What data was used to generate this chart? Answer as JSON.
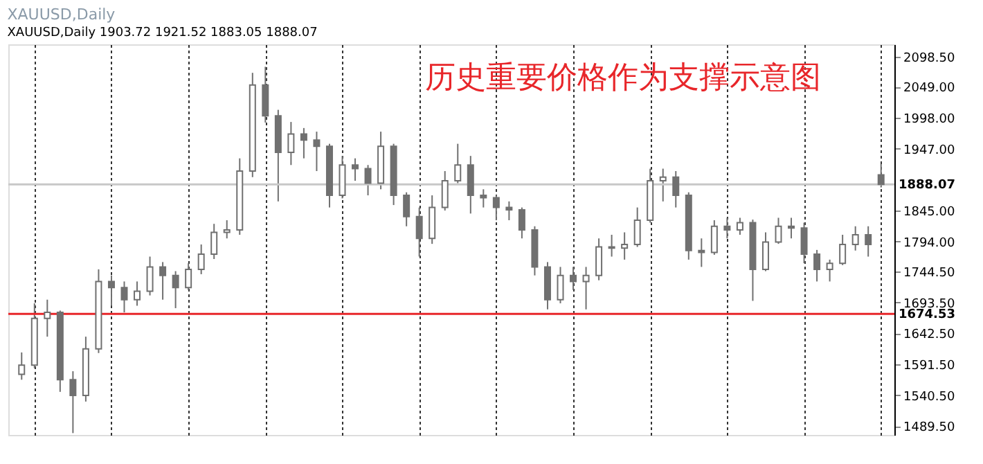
{
  "chart_data": {
    "type": "candlestick",
    "title": "XAUUSD,Daily",
    "subtitle": "XAUUSD,Daily  1903.72 1921.52 1883.05 1888.07",
    "annotations": [
      "历史重要价格作为支撑示意图"
    ],
    "color": "#707070",
    "categories": [
      null,
      null,
      null,
      null,
      null,
      null,
      null,
      null,
      null,
      null,
      null,
      null,
      null,
      null,
      null,
      null,
      null,
      null,
      null,
      null,
      null,
      null,
      null,
      null,
      null,
      null,
      null,
      null,
      null,
      null,
      null,
      null,
      null,
      null,
      null,
      null,
      null,
      null,
      null,
      null,
      null,
      null,
      null,
      null,
      null,
      null,
      null,
      null,
      null,
      null,
      null,
      null,
      null,
      null,
      null,
      null,
      null,
      null,
      null,
      null,
      null,
      null,
      null,
      null,
      null,
      null,
      null,
      null
    ],
    "ohlc": [
      [
        1575,
        1611,
        1566,
        1590
      ],
      [
        1590,
        1692,
        1585,
        1667
      ],
      [
        1667,
        1698,
        1637,
        1677
      ],
      [
        1677,
        1680,
        1546,
        1566
      ],
      [
        1566,
        1580,
        1478,
        1540
      ],
      [
        1540,
        1637,
        1530,
        1617
      ],
      [
        1617,
        1748,
        1610,
        1728
      ],
      [
        1728,
        1738,
        1688,
        1718
      ],
      [
        1718,
        1728,
        1677,
        1698
      ],
      [
        1698,
        1728,
        1688,
        1712
      ],
      [
        1712,
        1769,
        1705,
        1752
      ],
      [
        1752,
        1760,
        1698,
        1738
      ],
      [
        1738,
        1745,
        1684,
        1718
      ],
      [
        1718,
        1758,
        1714,
        1748
      ],
      [
        1748,
        1789,
        1740,
        1773
      ],
      [
        1773,
        1823,
        1765,
        1809
      ],
      [
        1809,
        1829,
        1799,
        1813
      ],
      [
        1813,
        1931,
        1805,
        1910
      ],
      [
        1910,
        2072,
        1900,
        2052
      ],
      [
        2052,
        2082,
        1990,
        2001
      ],
      [
        2001,
        2011,
        1860,
        1941
      ],
      [
        1941,
        1991,
        1920,
        1971
      ],
      [
        1971,
        1981,
        1931,
        1961
      ],
      [
        1961,
        1975,
        1910,
        1951
      ],
      [
        1951,
        1955,
        1850,
        1870
      ],
      [
        1870,
        1935,
        1865,
        1920
      ],
      [
        1920,
        1931,
        1894,
        1914
      ],
      [
        1914,
        1920,
        1870,
        1890
      ],
      [
        1890,
        1975,
        1880,
        1951
      ],
      [
        1951,
        1955,
        1854,
        1870
      ],
      [
        1870,
        1875,
        1819,
        1835
      ],
      [
        1835,
        1850,
        1769,
        1799
      ],
      [
        1799,
        1870,
        1790,
        1850
      ],
      [
        1850,
        1910,
        1845,
        1894
      ],
      [
        1894,
        1955,
        1890,
        1920
      ],
      [
        1920,
        1935,
        1840,
        1870
      ],
      [
        1870,
        1880,
        1850,
        1866
      ],
      [
        1866,
        1870,
        1829,
        1850
      ],
      [
        1850,
        1860,
        1829,
        1846
      ],
      [
        1846,
        1850,
        1799,
        1813
      ],
      [
        1813,
        1819,
        1738,
        1752
      ],
      [
        1752,
        1760,
        1682,
        1698
      ],
      [
        1698,
        1752,
        1692,
        1738
      ],
      [
        1738,
        1752,
        1714,
        1728
      ],
      [
        1728,
        1752,
        1682,
        1738
      ],
      [
        1738,
        1799,
        1730,
        1785
      ],
      [
        1785,
        1805,
        1769,
        1783
      ],
      [
        1783,
        1809,
        1764,
        1789
      ],
      [
        1789,
        1850,
        1785,
        1829
      ],
      [
        1829,
        1914,
        1825,
        1894
      ],
      [
        1894,
        1914,
        1860,
        1900
      ],
      [
        1900,
        1910,
        1850,
        1870
      ],
      [
        1870,
        1875,
        1764,
        1779
      ],
      [
        1779,
        1799,
        1752,
        1776
      ],
      [
        1776,
        1829,
        1772,
        1819
      ],
      [
        1819,
        1833,
        1799,
        1813
      ],
      [
        1813,
        1833,
        1805,
        1825
      ],
      [
        1825,
        1830,
        1696,
        1748
      ],
      [
        1748,
        1809,
        1745,
        1793
      ],
      [
        1793,
        1833,
        1790,
        1819
      ],
      [
        1819,
        1833,
        1799,
        1816
      ],
      [
        1816,
        1825,
        1758,
        1773
      ],
      [
        1773,
        1780,
        1728,
        1748
      ],
      [
        1748,
        1764,
        1728,
        1758
      ],
      [
        1758,
        1805,
        1755,
        1789
      ],
      [
        1789,
        1819,
        1779,
        1805
      ],
      [
        1805,
        1819,
        1769,
        1789
      ],
      [
        1903.72,
        1921.52,
        1883.05,
        1888.07
      ]
    ],
    "ylim": [
      1475,
      2119
    ],
    "yticks": [
      {
        "value": 2098.5,
        "label": "2098.50"
      },
      {
        "value": 2049,
        "label": "2049.00"
      },
      {
        "value": 1998,
        "label": "1998.00"
      },
      {
        "value": 1947,
        "label": "1947.00"
      },
      {
        "value": 1845,
        "label": "1845.00"
      },
      {
        "value": 1794,
        "label": "1794.00"
      },
      {
        "value": 1744.5,
        "label": "1744.50"
      },
      {
        "value": 1693.5,
        "label": "1693.50"
      },
      {
        "value": 1642.5,
        "label": "1642.50"
      },
      {
        "value": 1591.5,
        "label": "1591.50"
      },
      {
        "value": 1540.5,
        "label": "1540.50"
      },
      {
        "value": 1489.5,
        "label": "1489.50"
      }
    ],
    "ref_lines": [
      {
        "axis": "y",
        "value": 1888.07,
        "label": "1888.07",
        "color": "#c8c8c8"
      },
      {
        "axis": "y",
        "value": 1674.53,
        "label": "1674.53",
        "color": "#e8262a"
      }
    ],
    "grid": "x",
    "tick_labels": "y"
  }
}
